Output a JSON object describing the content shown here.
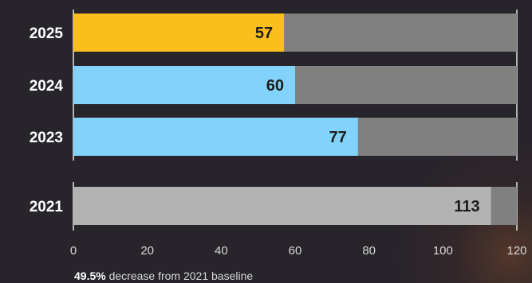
{
  "chart_data": {
    "type": "bar",
    "orientation": "horizontal",
    "categories": [
      "2025",
      "2024",
      "2023",
      "2021"
    ],
    "values": [
      57,
      60,
      77,
      113
    ],
    "xlim": [
      0,
      120
    ],
    "xticks": [
      0,
      20,
      40,
      60,
      80,
      100,
      120
    ],
    "tick_labels": [
      "0",
      "20",
      "40",
      "60",
      "80",
      "100",
      "120"
    ],
    "title": "",
    "xlabel": "",
    "ylabel": "",
    "grid": false,
    "bar_colors": [
      "#fbbf1d",
      "#82d3fb",
      "#82d3fb",
      "#b3b3b3"
    ],
    "track_color": "#808080",
    "groups": [
      [
        "2025",
        "2024",
        "2023"
      ],
      [
        "2021"
      ]
    ]
  },
  "footnote": {
    "value": "49.5%",
    "text": " decrease from 2021 baseline"
  }
}
